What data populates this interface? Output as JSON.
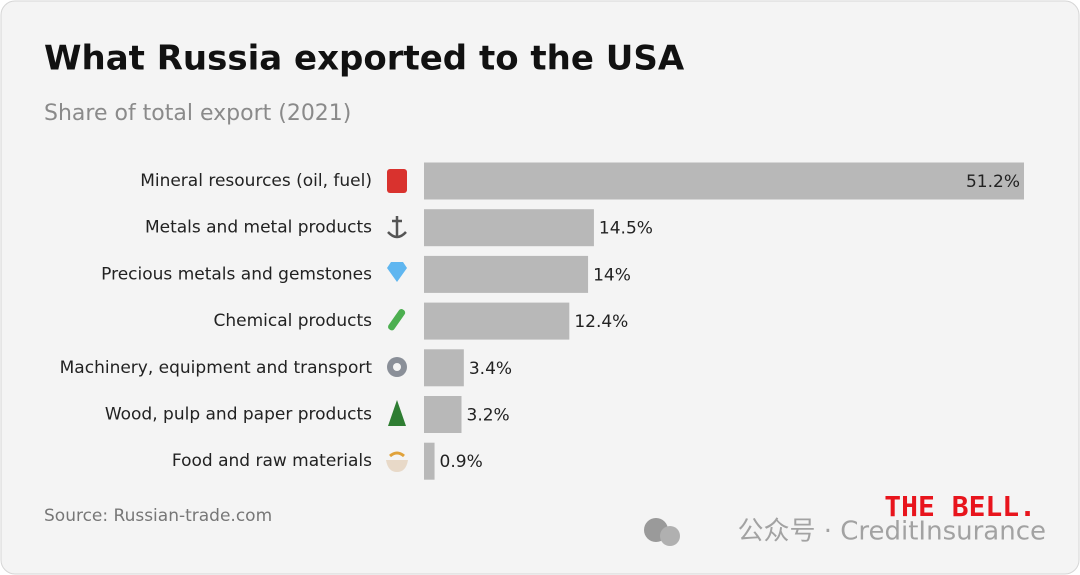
{
  "chart_data": {
    "type": "bar",
    "orientation": "horizontal",
    "title": "What Russia exported to the USA",
    "subtitle": "Share of total export (2021)",
    "categories": [
      "Mineral resources (oil, fuel)",
      "Metals and metal products",
      "Precious metals and gemstones",
      "Chemical products",
      "Machinery, equipment and transport",
      "Wood, pulp and paper products",
      "Food and raw materials"
    ],
    "values": [
      51.2,
      14.5,
      14,
      12.4,
      3.4,
      3.2,
      0.9
    ],
    "value_labels": [
      "51.2%",
      "14.5%",
      "14%",
      "12.4%",
      "3.4%",
      "3.2%",
      "0.9%"
    ],
    "color": "#b8b8b8",
    "source": "Source: Russian-trade.com",
    "logo": "THE BELL.",
    "watermark": "公众号 · CreditInsurance"
  }
}
